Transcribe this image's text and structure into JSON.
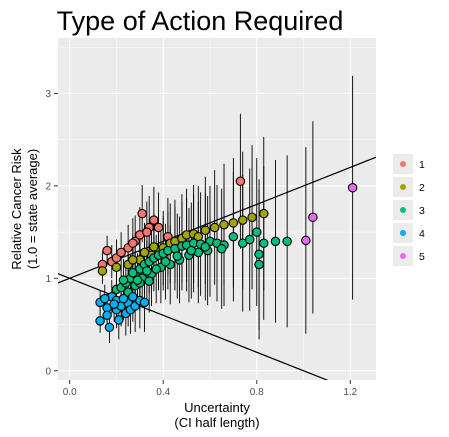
{
  "chart_data": {
    "type": "scatter",
    "title": "Type of Action Required",
    "xlabel_lines": [
      "Uncertainty",
      "(CI half length)"
    ],
    "ylabel_lines": [
      "Relative Cancer Risk",
      "(1.0 = state average)"
    ],
    "xlim": [
      -0.05,
      1.31
    ],
    "ylim": [
      -0.1,
      3.6
    ],
    "x_ticks": [
      0.0,
      0.4,
      0.8,
      1.2
    ],
    "x_tick_labels": [
      "0.0",
      "0.4",
      "0.8",
      "1.2"
    ],
    "y_ticks": [
      0,
      1,
      2,
      3
    ],
    "y_tick_labels": [
      "0",
      "1",
      "2",
      "3"
    ],
    "grid": true,
    "legend_position": "right",
    "colors": {
      "panel": "#ebebeb",
      "grid": "#ffffff"
    },
    "reference_lines": [
      {
        "intercept": 1.0,
        "slope": 1.0
      },
      {
        "intercept": 1.0,
        "slope": -1.0
      }
    ],
    "series": [
      {
        "name": "1",
        "color": "#F8766D",
        "points": [
          [
            0.14,
            1.15
          ],
          [
            0.16,
            1.3
          ],
          [
            0.18,
            1.18
          ],
          [
            0.2,
            1.22
          ],
          [
            0.22,
            1.28
          ],
          [
            0.25,
            1.33
          ],
          [
            0.28,
            1.4
          ],
          [
            0.3,
            1.47
          ],
          [
            0.31,
            1.7
          ],
          [
            0.34,
            1.55
          ],
          [
            0.36,
            1.63
          ],
          [
            0.38,
            1.55
          ],
          [
            0.42,
            1.45
          ],
          [
            0.27,
            1.38
          ],
          [
            0.33,
            1.5
          ],
          [
            0.73,
            2.05
          ]
        ]
      },
      {
        "name": "2",
        "color": "#A3A500",
        "points": [
          [
            0.14,
            1.08
          ],
          [
            0.2,
            1.12
          ],
          [
            0.25,
            1.15
          ],
          [
            0.3,
            1.2
          ],
          [
            0.35,
            1.25
          ],
          [
            0.38,
            1.3
          ],
          [
            0.4,
            1.33
          ],
          [
            0.43,
            1.38
          ],
          [
            0.45,
            1.4
          ],
          [
            0.48,
            1.43
          ],
          [
            0.5,
            1.47
          ],
          [
            0.53,
            1.48
          ],
          [
            0.58,
            1.52
          ],
          [
            0.62,
            1.55
          ],
          [
            0.66,
            1.58
          ],
          [
            0.7,
            1.6
          ],
          [
            0.74,
            1.63
          ],
          [
            0.78,
            1.66
          ],
          [
            0.83,
            1.7
          ],
          [
            0.36,
            1.34
          ],
          [
            0.32,
            1.28
          ],
          [
            0.27,
            1.2
          ],
          [
            0.55,
            1.45
          ]
        ]
      },
      {
        "name": "3",
        "color": "#00BF7D",
        "points": [
          [
            0.2,
            0.88
          ],
          [
            0.22,
            0.9
          ],
          [
            0.24,
            0.95
          ],
          [
            0.26,
            1.0
          ],
          [
            0.28,
            1.05
          ],
          [
            0.3,
            1.1
          ],
          [
            0.32,
            1.15
          ],
          [
            0.34,
            1.18
          ],
          [
            0.36,
            1.22
          ],
          [
            0.38,
            1.25
          ],
          [
            0.4,
            1.27
          ],
          [
            0.42,
            1.3
          ],
          [
            0.45,
            1.32
          ],
          [
            0.48,
            1.35
          ],
          [
            0.5,
            1.36
          ],
          [
            0.53,
            1.38
          ],
          [
            0.56,
            1.37
          ],
          [
            0.6,
            1.4
          ],
          [
            0.63,
            1.38
          ],
          [
            0.66,
            1.36
          ],
          [
            0.7,
            1.45
          ],
          [
            0.74,
            1.38
          ],
          [
            0.77,
            1.42
          ],
          [
            0.8,
            1.5
          ],
          [
            0.81,
            1.26
          ],
          [
            0.81,
            1.15
          ],
          [
            0.83,
            1.38
          ],
          [
            0.88,
            1.4
          ],
          [
            0.93,
            1.4
          ],
          [
            0.25,
            0.85
          ],
          [
            0.28,
            0.92
          ],
          [
            0.31,
            1.0
          ],
          [
            0.35,
            1.05
          ],
          [
            0.39,
            1.12
          ],
          [
            0.43,
            1.15
          ],
          [
            0.47,
            1.2
          ],
          [
            0.51,
            1.25
          ],
          [
            0.55,
            1.28
          ],
          [
            0.59,
            1.3
          ],
          [
            0.3,
            0.95
          ],
          [
            0.33,
            1.08
          ],
          [
            0.37,
            1.1
          ],
          [
            0.41,
            1.18
          ],
          [
            0.46,
            1.24
          ],
          [
            0.52,
            1.3
          ],
          [
            0.58,
            1.34
          ],
          [
            0.65,
            1.32
          ],
          [
            0.23,
            0.98
          ],
          [
            0.27,
            1.06
          ],
          [
            0.29,
            0.98
          ],
          [
            0.34,
            0.97
          ]
        ]
      },
      {
        "name": "4",
        "color": "#00B0F6",
        "points": [
          [
            0.13,
            0.54
          ],
          [
            0.13,
            0.74
          ],
          [
            0.16,
            0.68
          ],
          [
            0.17,
            0.47
          ],
          [
            0.18,
            0.8
          ],
          [
            0.2,
            0.66
          ],
          [
            0.2,
            0.76
          ],
          [
            0.21,
            0.55
          ],
          [
            0.22,
            0.7
          ],
          [
            0.24,
            0.62
          ],
          [
            0.25,
            0.73
          ],
          [
            0.26,
            0.66
          ],
          [
            0.28,
            0.7
          ],
          [
            0.3,
            0.76
          ],
          [
            0.32,
            0.74
          ],
          [
            0.15,
            0.78
          ],
          [
            0.19,
            0.72
          ],
          [
            0.23,
            0.78
          ],
          [
            0.27,
            0.8
          ],
          [
            0.16,
            0.6
          ]
        ]
      },
      {
        "name": "5",
        "color": "#E76BF3",
        "points": [
          [
            1.01,
            1.41
          ],
          [
            1.04,
            1.66
          ],
          [
            1.21,
            1.98
          ]
        ]
      }
    ]
  }
}
